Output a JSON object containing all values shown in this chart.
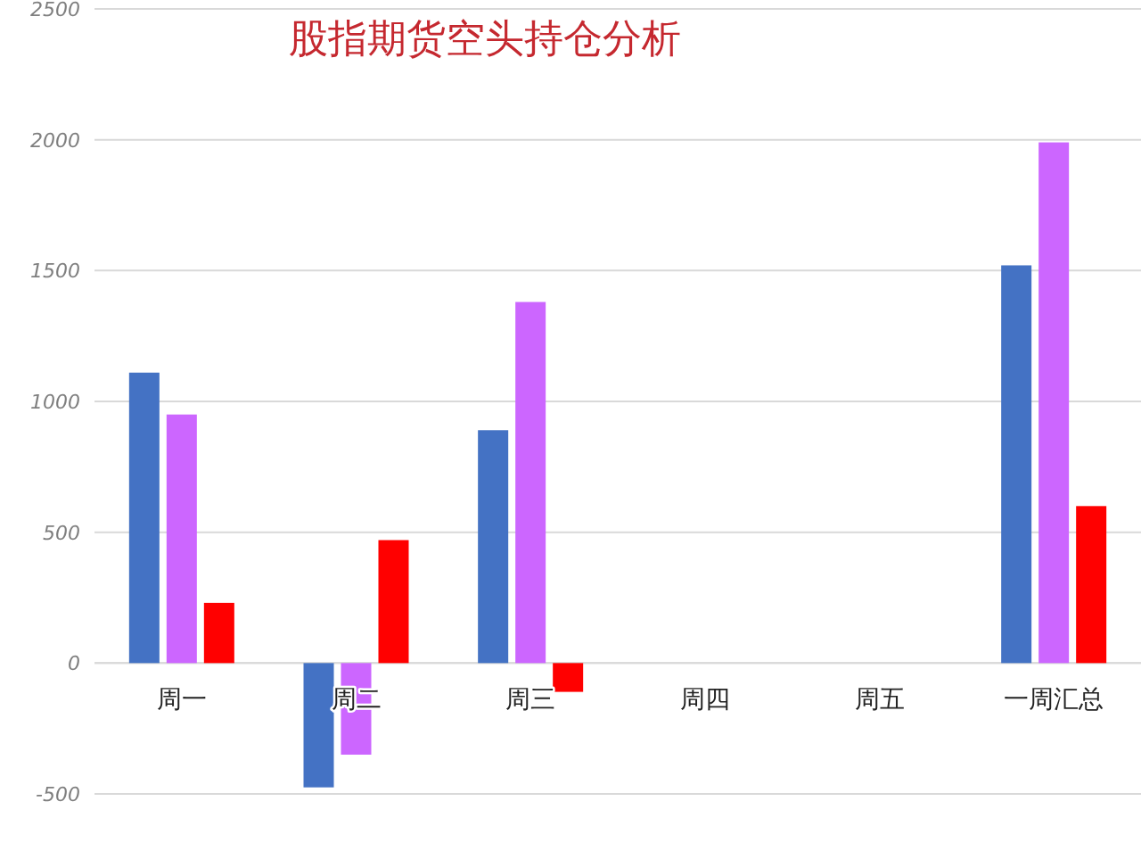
{
  "chart_data": {
    "type": "bar",
    "title": "股指期货空头持仓分析",
    "categories": [
      "周一",
      "周二",
      "周三",
      "周四",
      "周五",
      "一周汇总"
    ],
    "series": [
      {
        "color": "#4472c4",
        "values": [
          1110,
          -475,
          890,
          null,
          null,
          1520
        ]
      },
      {
        "color": "#cc66ff",
        "values": [
          950,
          -350,
          1380,
          null,
          null,
          1990
        ]
      },
      {
        "color": "#ff0000",
        "values": [
          230,
          470,
          -110,
          null,
          null,
          600
        ]
      }
    ],
    "ylim": [
      -500,
      2500
    ],
    "yticks": [
      -500,
      0,
      500,
      1000,
      1500,
      2000,
      2500
    ],
    "grid": "y"
  }
}
